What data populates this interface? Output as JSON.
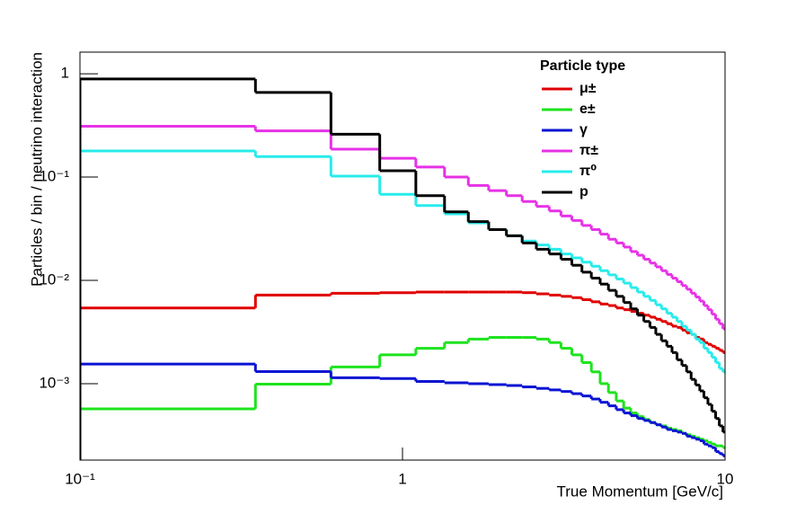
{
  "chart_data": {
    "type": "histogram",
    "xlabel": "True Momentum [GeV/c]",
    "ylabel": "Particles / bin / neutrino interaction",
    "xscale": "log",
    "yscale": "log",
    "xlim": [
      0.1,
      10
    ],
    "ylim": [
      0.000182,
      1.62
    ],
    "xticks": [
      {
        "value": 0.1,
        "label": "10⁻¹"
      },
      1,
      10
    ],
    "yticks": [
      {
        "value": 0.001,
        "label": "10⁻³"
      },
      {
        "value": 0.01,
        "label": "10⁻²"
      },
      {
        "value": 0.1,
        "label": "10⁻¹"
      },
      1
    ],
    "legend_title": "Particle type",
    "legend_position": "upper right",
    "bins": [
      0.1,
      0.35,
      0.6,
      0.85,
      1.1,
      1.35,
      1.6,
      1.85,
      2.1,
      2.35,
      2.6,
      2.85,
      3.1,
      3.35,
      3.6,
      3.85,
      4.1,
      4.35,
      4.6,
      4.85,
      5.1,
      5.35,
      5.6,
      5.85,
      6.1,
      6.35,
      6.6,
      6.85,
      7.1,
      7.35,
      7.6,
      7.85,
      8.1,
      8.35,
      8.6,
      8.85,
      9.1,
      9.35,
      9.6,
      9.85,
      10.1
    ],
    "series": [
      {
        "name": "μ±",
        "color": "#e00000",
        "values": [
          0.0054,
          0.0072,
          0.0075,
          0.0076,
          0.0077,
          0.0077,
          0.0077,
          0.0077,
          0.0077,
          0.0076,
          0.0074,
          0.0072,
          0.007,
          0.0068,
          0.0065,
          0.0062,
          0.0059,
          0.0057,
          0.0054,
          0.0052,
          0.005,
          0.0048,
          0.0046,
          0.0044,
          0.0042,
          0.004,
          0.0038,
          0.0036,
          0.0035,
          0.0033,
          0.0031,
          0.003,
          0.0028,
          0.0027,
          0.0025,
          0.0024,
          0.0023,
          0.0022,
          0.0021,
          0.002
        ]
      },
      {
        "name": "e±",
        "color": "#1ee31e",
        "values": [
          0.00057,
          0.00099,
          0.00145,
          0.0019,
          0.0022,
          0.0025,
          0.0027,
          0.0028,
          0.0028,
          0.0028,
          0.0027,
          0.0025,
          0.0022,
          0.0019,
          0.0016,
          0.0013,
          0.001,
          0.00082,
          0.00068,
          0.00058,
          0.00052,
          0.00048,
          0.00045,
          0.00042,
          0.0004,
          0.00039,
          0.00037,
          0.00036,
          0.00035,
          0.00033,
          0.00032,
          0.00031,
          0.0003,
          0.00029,
          0.00028,
          0.00027,
          0.00026,
          0.00025,
          0.00025,
          0.00024
        ]
      },
      {
        "name": "γ",
        "color": "#0a14d2",
        "values": [
          0.00155,
          0.00131,
          0.00114,
          0.00112,
          0.00105,
          0.00102,
          0.001,
          0.00098,
          0.00096,
          0.00093,
          0.0009,
          0.00087,
          0.00084,
          0.0008,
          0.00076,
          0.00071,
          0.00066,
          0.00061,
          0.00056,
          0.00052,
          0.00049,
          0.00046,
          0.00044,
          0.00042,
          0.0004,
          0.00038,
          0.00036,
          0.00035,
          0.00034,
          0.00033,
          0.00031,
          0.0003,
          0.00029,
          0.00028,
          0.00026,
          0.00025,
          0.00024,
          0.00022,
          0.00021,
          0.0002
        ]
      },
      {
        "name": "π±",
        "color": "#e632e6",
        "values": [
          0.31,
          0.28,
          0.186,
          0.152,
          0.125,
          0.1,
          0.083,
          0.074,
          0.066,
          0.058,
          0.052,
          0.047,
          0.042,
          0.038,
          0.034,
          0.031,
          0.028,
          0.025,
          0.023,
          0.021,
          0.019,
          0.0175,
          0.016,
          0.0147,
          0.0135,
          0.0124,
          0.0114,
          0.0105,
          0.0097,
          0.0089,
          0.0082,
          0.0075,
          0.0069,
          0.0063,
          0.0057,
          0.0052,
          0.0047,
          0.0042,
          0.0038,
          0.0034
        ]
      },
      {
        "name": "π⁰",
        "color": "#28ebeb",
        "values": [
          0.179,
          0.158,
          0.102,
          0.068,
          0.053,
          0.044,
          0.036,
          0.031,
          0.027,
          0.024,
          0.022,
          0.02,
          0.018,
          0.0165,
          0.015,
          0.0137,
          0.0124,
          0.0113,
          0.0103,
          0.0094,
          0.0085,
          0.0077,
          0.007,
          0.0064,
          0.0058,
          0.0053,
          0.0048,
          0.0044,
          0.004,
          0.0036,
          0.0033,
          0.003,
          0.0027,
          0.0025,
          0.0022,
          0.002,
          0.0018,
          0.0016,
          0.0014,
          0.0013
        ]
      },
      {
        "name": "p",
        "color": "#000000",
        "values": [
          0.89,
          0.66,
          0.26,
          0.115,
          0.066,
          0.046,
          0.037,
          0.031,
          0.027,
          0.023,
          0.02,
          0.018,
          0.016,
          0.014,
          0.012,
          0.0105,
          0.0092,
          0.008,
          0.007,
          0.0061,
          0.0053,
          0.0046,
          0.004,
          0.0035,
          0.003,
          0.0026,
          0.0023,
          0.002,
          0.0017,
          0.0015,
          0.0013,
          0.0011,
          0.00097,
          0.00085,
          0.00073,
          0.00063,
          0.00054,
          0.00046,
          0.00039,
          0.00034
        ]
      }
    ]
  }
}
